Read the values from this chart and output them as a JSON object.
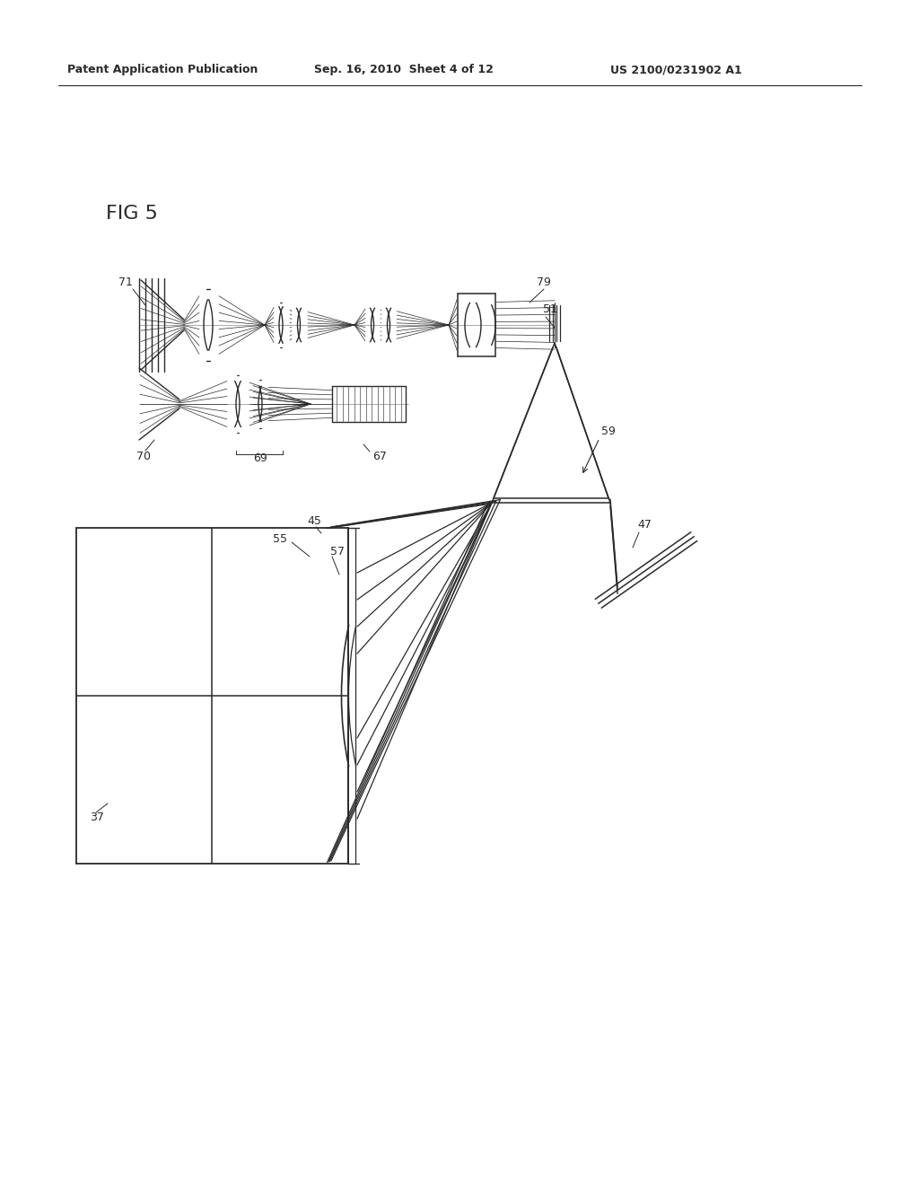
{
  "bg_color": "#ffffff",
  "line_color": "#2a2a2a",
  "header_left": "Patent Application Publication",
  "header_mid": "Sep. 16, 2010  Sheet 4 of 12",
  "header_right": "US 2100/0231902 A1",
  "fig_label": "FIG 5"
}
